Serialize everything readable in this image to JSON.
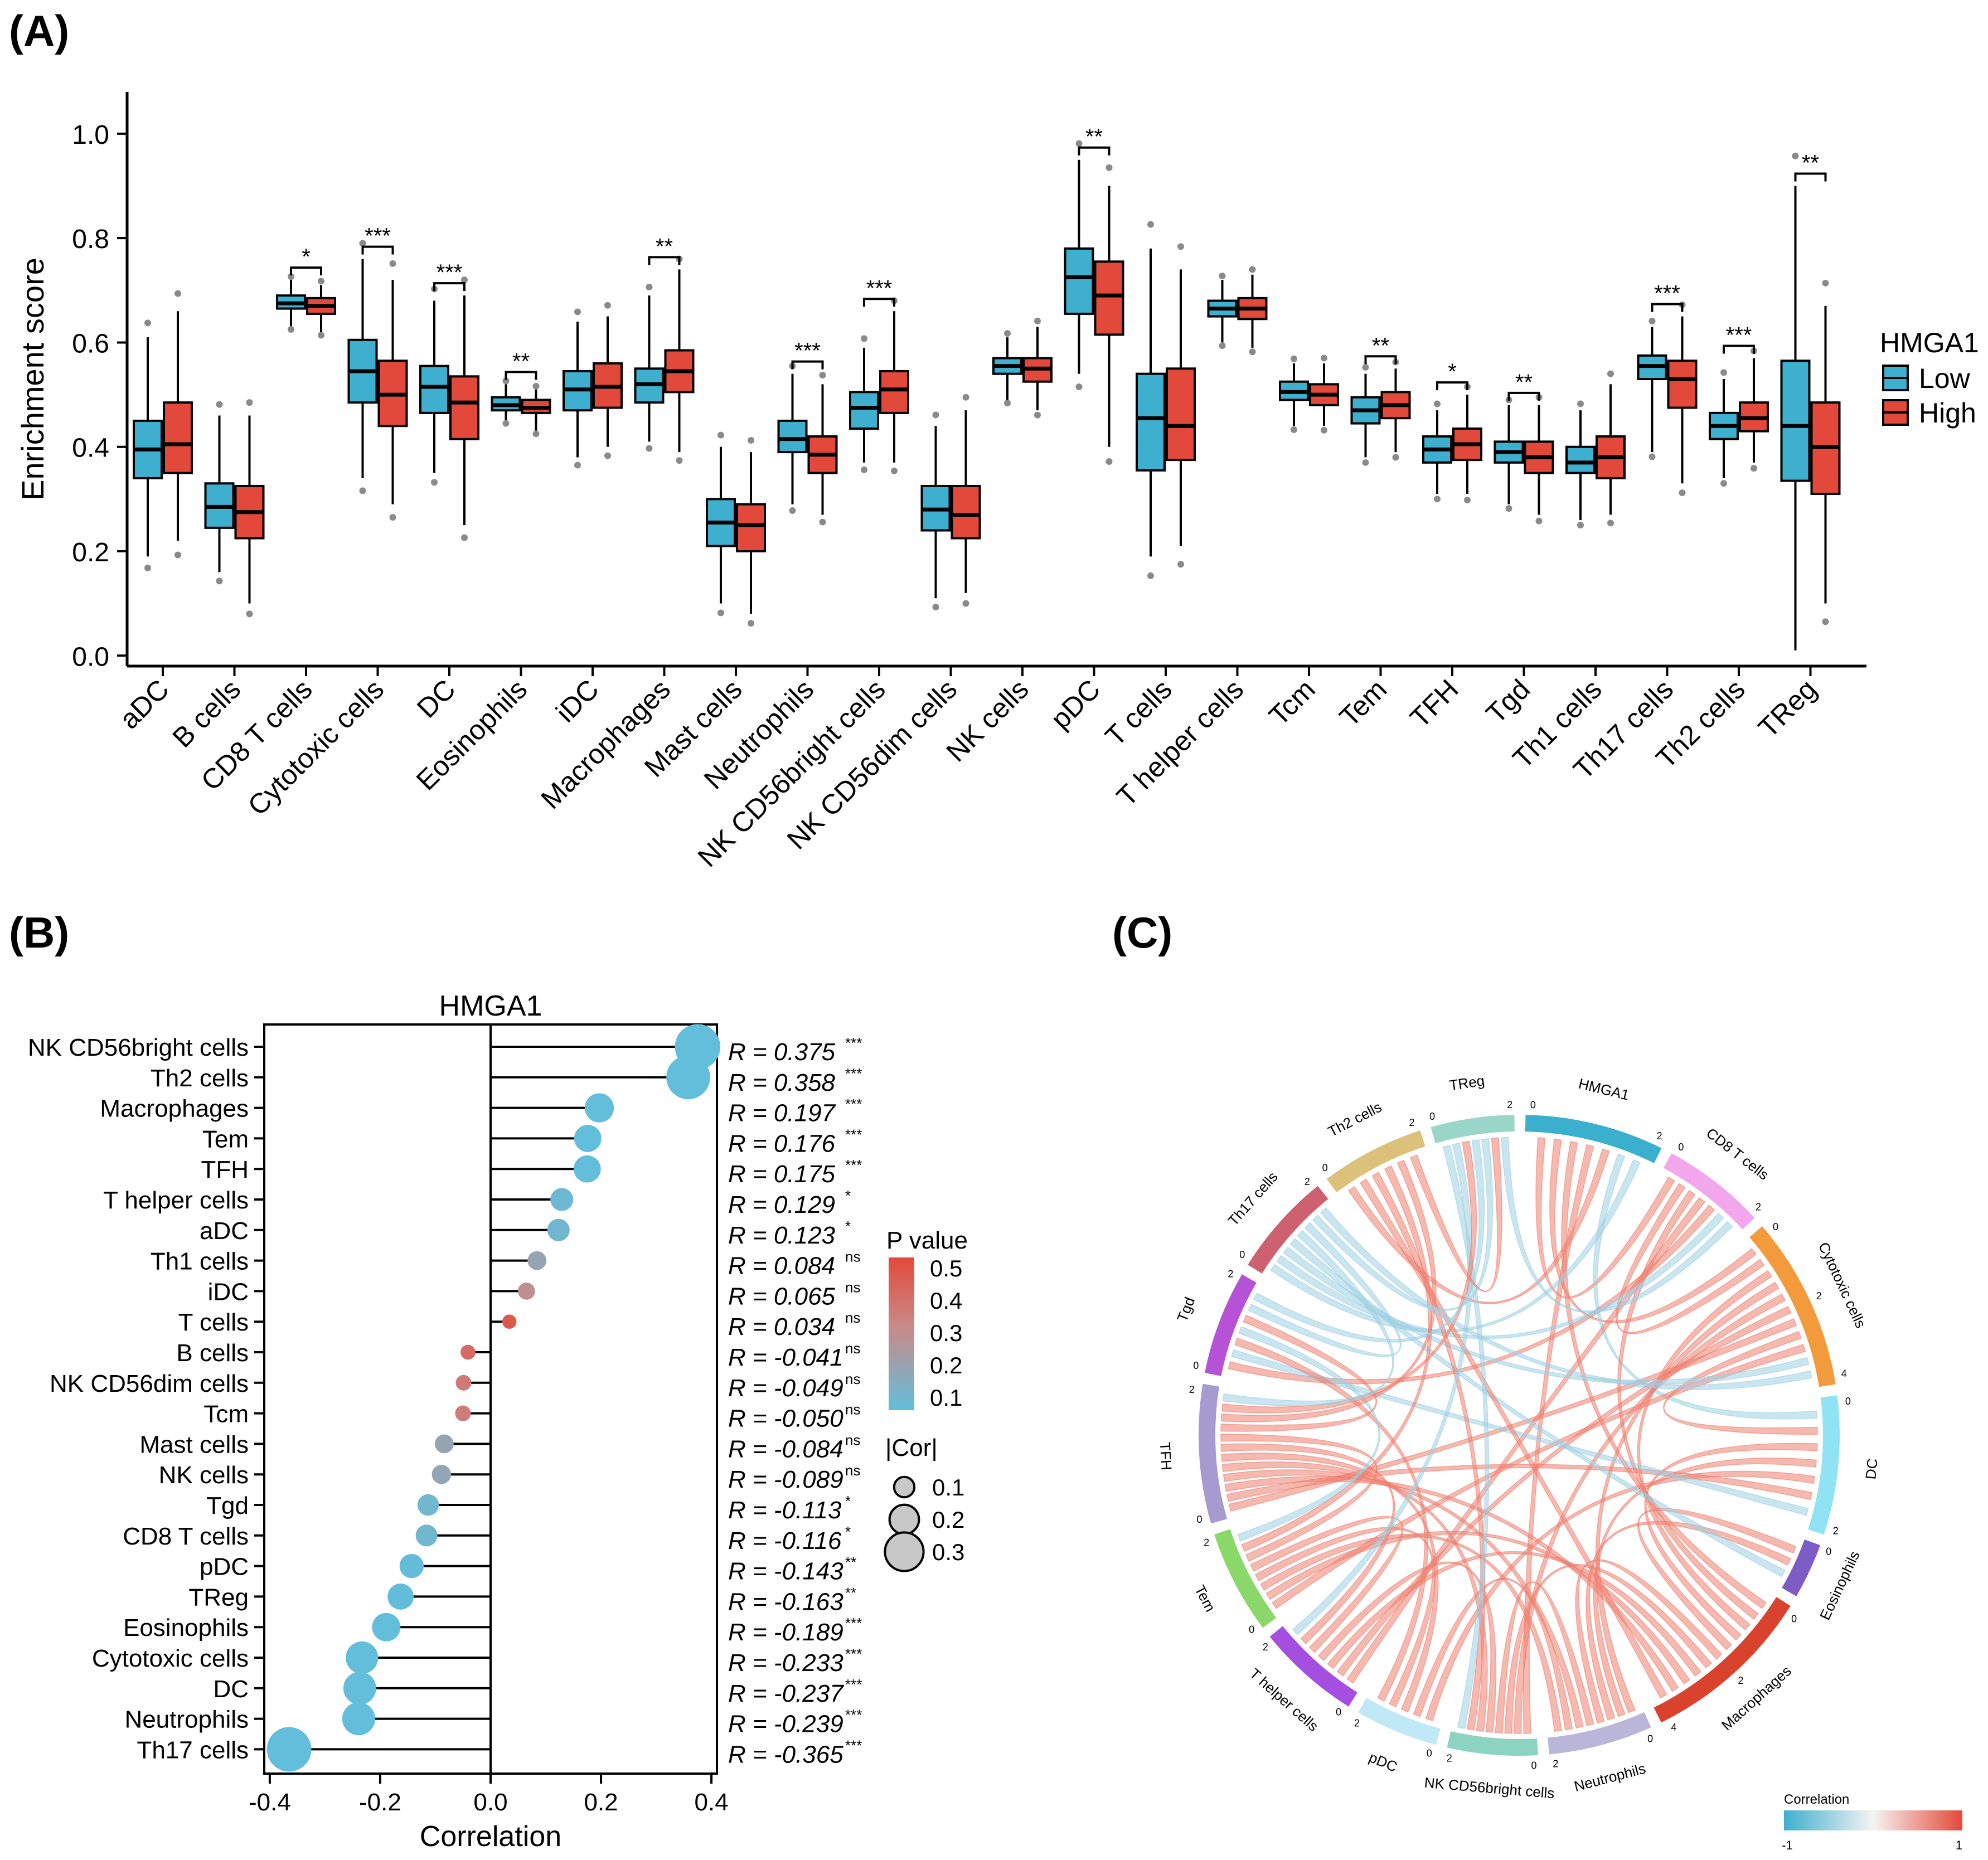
{
  "panels": {
    "a": "(A)",
    "b": "(B)",
    "c": "(C)"
  },
  "colors": {
    "low": "#3EAFCF",
    "high": "#E3493A",
    "pos": "#EE7F70",
    "neg": "#9DCFE2"
  },
  "chart_data": [
    {
      "type": "box",
      "panel": "(A)",
      "ylabel": "Enrichment score",
      "ylim": [
        -0.02,
        1.08
      ],
      "yticks": [
        "0.0",
        "0.2",
        "0.4",
        "0.6",
        "0.8",
        "1.0"
      ],
      "legend": {
        "title": "HMGA1",
        "items": [
          "Low",
          "High"
        ],
        "placement": "right"
      },
      "categories": [
        "aDC",
        "B cells",
        "CD8 T cells",
        "Cytotoxic cells",
        "DC",
        "Eosinophils",
        "iDC",
        "Macrophages",
        "Mast cells",
        "Neutrophils",
        "NK CD56bright cells",
        "NK CD56dim cells",
        "NK cells",
        "pDC",
        "T cells",
        "T helper cells",
        "Tcm",
        "Tem",
        "TFH",
        "Tgd",
        "Th1 cells",
        "Th17 cells",
        "Th2 cells",
        "TReg"
      ],
      "significance": [
        "",
        "",
        "*",
        "***",
        "***",
        "**",
        "",
        "**",
        "",
        "***",
        "***",
        "",
        "",
        "**",
        "",
        "",
        "",
        "**",
        "*",
        "**",
        "",
        "***",
        "***",
        "**"
      ],
      "series": [
        {
          "name": "Low",
          "boxes": [
            [
              0.19,
              0.34,
              0.395,
              0.45,
              0.61
            ],
            [
              0.16,
              0.245,
              0.285,
              0.33,
              0.46
            ],
            [
              0.63,
              0.665,
              0.675,
              0.69,
              0.72
            ],
            [
              0.34,
              0.485,
              0.545,
              0.605,
              0.76
            ],
            [
              0.35,
              0.465,
              0.515,
              0.555,
              0.68
            ],
            [
              0.45,
              0.47,
              0.48,
              0.495,
              0.52
            ],
            [
              0.38,
              0.47,
              0.51,
              0.545,
              0.64
            ],
            [
              0.41,
              0.485,
              0.52,
              0.55,
              0.69
            ],
            [
              0.1,
              0.21,
              0.255,
              0.3,
              0.4
            ],
            [
              0.29,
              0.39,
              0.415,
              0.45,
              0.54
            ],
            [
              0.37,
              0.435,
              0.475,
              0.505,
              0.59
            ],
            [
              0.11,
              0.24,
              0.28,
              0.325,
              0.44
            ],
            [
              0.49,
              0.54,
              0.555,
              0.57,
              0.61
            ],
            [
              0.54,
              0.655,
              0.725,
              0.78,
              0.95
            ],
            [
              0.19,
              0.355,
              0.455,
              0.54,
              0.78
            ],
            [
              0.6,
              0.65,
              0.665,
              0.68,
              0.72
            ],
            [
              0.44,
              0.49,
              0.505,
              0.525,
              0.56
            ],
            [
              0.38,
              0.445,
              0.47,
              0.495,
              0.54
            ],
            [
              0.31,
              0.37,
              0.395,
              0.42,
              0.47
            ],
            [
              0.29,
              0.37,
              0.39,
              0.41,
              0.48
            ],
            [
              0.26,
              0.35,
              0.37,
              0.4,
              0.47
            ],
            [
              0.39,
              0.53,
              0.555,
              0.575,
              0.63
            ],
            [
              0.34,
              0.415,
              0.44,
              0.465,
              0.53
            ],
            [
              0.01,
              0.335,
              0.44,
              0.565,
              0.9
            ]
          ]
        },
        {
          "name": "High",
          "boxes": [
            [
              0.22,
              0.35,
              0.405,
              0.485,
              0.66
            ],
            [
              0.1,
              0.225,
              0.275,
              0.325,
              0.46
            ],
            [
              0.62,
              0.655,
              0.67,
              0.685,
              0.71
            ],
            [
              0.29,
              0.44,
              0.5,
              0.565,
              0.72
            ],
            [
              0.25,
              0.415,
              0.485,
              0.535,
              0.69
            ],
            [
              0.43,
              0.465,
              0.475,
              0.49,
              0.51
            ],
            [
              0.4,
              0.475,
              0.515,
              0.56,
              0.65
            ],
            [
              0.39,
              0.505,
              0.545,
              0.585,
              0.74
            ],
            [
              0.08,
              0.2,
              0.25,
              0.29,
              0.39
            ],
            [
              0.27,
              0.35,
              0.385,
              0.42,
              0.52
            ],
            [
              0.37,
              0.465,
              0.51,
              0.545,
              0.66
            ],
            [
              0.12,
              0.225,
              0.27,
              0.325,
              0.47
            ],
            [
              0.47,
              0.525,
              0.55,
              0.57,
              0.63
            ],
            [
              0.4,
              0.615,
              0.69,
              0.755,
              0.9
            ],
            [
              0.21,
              0.375,
              0.44,
              0.55,
              0.74
            ],
            [
              0.59,
              0.645,
              0.665,
              0.685,
              0.73
            ],
            [
              0.44,
              0.48,
              0.5,
              0.52,
              0.56
            ],
            [
              0.39,
              0.455,
              0.48,
              0.505,
              0.55
            ],
            [
              0.31,
              0.375,
              0.405,
              0.435,
              0.5
            ],
            [
              0.27,
              0.35,
              0.38,
              0.41,
              0.48
            ],
            [
              0.27,
              0.34,
              0.38,
              0.42,
              0.52
            ],
            [
              0.33,
              0.475,
              0.53,
              0.565,
              0.65
            ],
            [
              0.37,
              0.43,
              0.455,
              0.485,
              0.57
            ],
            [
              0.1,
              0.31,
              0.4,
              0.485,
              0.67
            ]
          ]
        }
      ]
    },
    {
      "type": "lollipop",
      "panel": "(B)",
      "title": "HMGA1",
      "xlabel": "Correlation",
      "xlim": [
        -0.41,
        0.41
      ],
      "xticks": [
        "-0.4",
        "-0.2",
        "0.0",
        "0.2",
        "0.4"
      ],
      "pvalue_legend": {
        "title": "P value",
        "ticks": [
          "0.5",
          "0.4",
          "0.3",
          "0.2",
          "0.1"
        ]
      },
      "size_legend": {
        "title": "|Cor|",
        "items": [
          "0.1",
          "0.2",
          "0.3"
        ]
      },
      "categories": [
        "NK CD56bright cells",
        "Th2 cells",
        "Macrophages",
        "Tem",
        "TFH",
        "T helper cells",
        "aDC",
        "Th1 cells",
        "iDC",
        "T cells",
        "B cells",
        "NK CD56dim cells",
        "Tcm",
        "Mast cells",
        "NK cells",
        "Tgd",
        "CD8 T cells",
        "pDC",
        "TReg",
        "Eosinophils",
        "Cytotoxic cells",
        "DC",
        "Neutrophils",
        "Th17 cells"
      ],
      "values": [
        0.375,
        0.358,
        0.197,
        0.176,
        0.175,
        0.129,
        0.123,
        0.084,
        0.065,
        0.034,
        -0.041,
        -0.049,
        -0.05,
        -0.084,
        -0.089,
        -0.113,
        -0.116,
        -0.143,
        -0.163,
        -0.189,
        -0.233,
        -0.237,
        -0.239,
        -0.365
      ],
      "labels": [
        "R = 0.375",
        "R = 0.358",
        "R = 0.197",
        "R = 0.176",
        "R = 0.175",
        "R = 0.129",
        "R = 0.123",
        "R = 0.084",
        "R = 0.065",
        "R = 0.034",
        "R = -0.041",
        "R = -0.049",
        "R = -0.050",
        "R = -0.084",
        "R = -0.089",
        "R = -0.113",
        "R = -0.116",
        "R = -0.143",
        "R = -0.163",
        "R = -0.189",
        "R = -0.233",
        "R = -0.237",
        "R = -0.239",
        "R = -0.365"
      ],
      "significance": [
        "***",
        "***",
        "***",
        "***",
        "***",
        "*",
        "*",
        "ns",
        "ns",
        "ns",
        "ns",
        "ns",
        "ns",
        "ns",
        "ns",
        "*",
        "*",
        "**",
        "**",
        "***",
        "***",
        "***",
        "***",
        "***"
      ],
      "p_values": [
        0.001,
        0.001,
        0.001,
        0.001,
        0.001,
        0.03,
        0.04,
        0.14,
        0.25,
        0.45,
        0.38,
        0.33,
        0.32,
        0.14,
        0.13,
        0.04,
        0.04,
        0.01,
        0.005,
        0.001,
        0.001,
        0.001,
        0.001,
        0.001
      ]
    },
    {
      "type": "chord",
      "panel": "(C)",
      "sectors": [
        {
          "name": "HMGA1",
          "color": "#3AAFCE",
          "ticks": [
            "0",
            "2"
          ]
        },
        {
          "name": "CD8 T cells",
          "color": "#F2A6EC",
          "ticks": [
            "0",
            "2"
          ]
        },
        {
          "name": "Cytotoxic cells",
          "color": "#F39B3C",
          "ticks": [
            "0",
            "2",
            "4"
          ]
        },
        {
          "name": "DC",
          "color": "#8FE3F4",
          "ticks": [
            "0",
            "2"
          ]
        },
        {
          "name": "Eosinophils",
          "color": "#7D5CC6",
          "ticks": [
            "0"
          ]
        },
        {
          "name": "Macrophages",
          "color": "#D9432E",
          "ticks": [
            "0",
            "2",
            "4"
          ]
        },
        {
          "name": "Neutrophils",
          "color": "#B9B6DA",
          "ticks": [
            "0",
            "2"
          ]
        },
        {
          "name": "NK CD56bright cells",
          "color": "#8DD3C1",
          "ticks": [
            "0",
            "2"
          ]
        },
        {
          "name": "pDC",
          "color": "#BFE9F6",
          "ticks": [
            "0",
            "2"
          ]
        },
        {
          "name": "T helper cells",
          "color": "#A54FE0",
          "ticks": [
            "0",
            "2"
          ]
        },
        {
          "name": "Tem",
          "color": "#8AD86A",
          "ticks": [
            "0",
            "2"
          ]
        },
        {
          "name": "TFH",
          "color": "#A59BD0",
          "ticks": [
            "0",
            "2"
          ]
        },
        {
          "name": "Tgd",
          "color": "#B552D6",
          "ticks": [
            "0",
            "2"
          ]
        },
        {
          "name": "Th17 cells",
          "color": "#CD6170",
          "ticks": [
            "0",
            "2"
          ]
        },
        {
          "name": "Th2 cells",
          "color": "#DCC17A",
          "ticks": [
            "0",
            "2"
          ]
        },
        {
          "name": "TReg",
          "color": "#9AD6C8",
          "ticks": [
            "0",
            "2"
          ]
        }
      ],
      "sector_sizes": [
        4,
        3,
        5,
        4,
        1.6,
        5,
        3,
        2.6,
        2.4,
        3,
        3,
        4,
        3,
        3,
        3,
        2.4
      ],
      "links": [
        [
          0,
          1,
          1
        ],
        [
          0,
          2,
          1
        ],
        [
          0,
          5,
          1
        ],
        [
          0,
          7,
          1
        ],
        [
          0,
          14,
          1
        ],
        [
          0,
          3,
          -1
        ],
        [
          0,
          13,
          -1
        ],
        [
          1,
          2,
          1
        ],
        [
          1,
          5,
          1
        ],
        [
          1,
          9,
          1
        ],
        [
          1,
          12,
          1
        ],
        [
          1,
          13,
          -1
        ],
        [
          2,
          5,
          1
        ],
        [
          2,
          6,
          1
        ],
        [
          2,
          7,
          1
        ],
        [
          2,
          9,
          1
        ],
        [
          2,
          11,
          1
        ],
        [
          2,
          3,
          1
        ],
        [
          2,
          10,
          1
        ],
        [
          2,
          13,
          -1
        ],
        [
          3,
          5,
          1
        ],
        [
          3,
          6,
          1
        ],
        [
          3,
          8,
          1
        ],
        [
          3,
          11,
          1
        ],
        [
          3,
          12,
          -1
        ],
        [
          4,
          5,
          1
        ],
        [
          4,
          6,
          1
        ],
        [
          4,
          13,
          -1
        ],
        [
          5,
          6,
          1
        ],
        [
          5,
          7,
          1
        ],
        [
          5,
          9,
          1
        ],
        [
          5,
          10,
          1
        ],
        [
          5,
          11,
          1
        ],
        [
          5,
          14,
          1
        ],
        [
          6,
          7,
          1
        ],
        [
          6,
          11,
          1
        ],
        [
          6,
          8,
          1
        ],
        [
          6,
          10,
          1
        ],
        [
          7,
          9,
          1
        ],
        [
          7,
          11,
          1
        ],
        [
          7,
          14,
          1
        ],
        [
          7,
          15,
          -1
        ],
        [
          8,
          11,
          1
        ],
        [
          8,
          10,
          1
        ],
        [
          8,
          12,
          1
        ],
        [
          9,
          10,
          1
        ],
        [
          9,
          11,
          1
        ],
        [
          9,
          15,
          -1
        ],
        [
          10,
          11,
          1
        ],
        [
          10,
          14,
          1
        ],
        [
          10,
          12,
          -1
        ],
        [
          11,
          12,
          1
        ],
        [
          11,
          14,
          1
        ],
        [
          11,
          15,
          1
        ],
        [
          11,
          13,
          -1
        ],
        [
          12,
          13,
          -1
        ],
        [
          12,
          15,
          -1
        ],
        [
          13,
          15,
          -1
        ],
        [
          13,
          2,
          -1
        ],
        [
          14,
          15,
          1
        ],
        [
          15,
          1,
          -1
        ]
      ],
      "legend": {
        "title": "Correlation",
        "min": "-1",
        "max": "1"
      }
    }
  ]
}
